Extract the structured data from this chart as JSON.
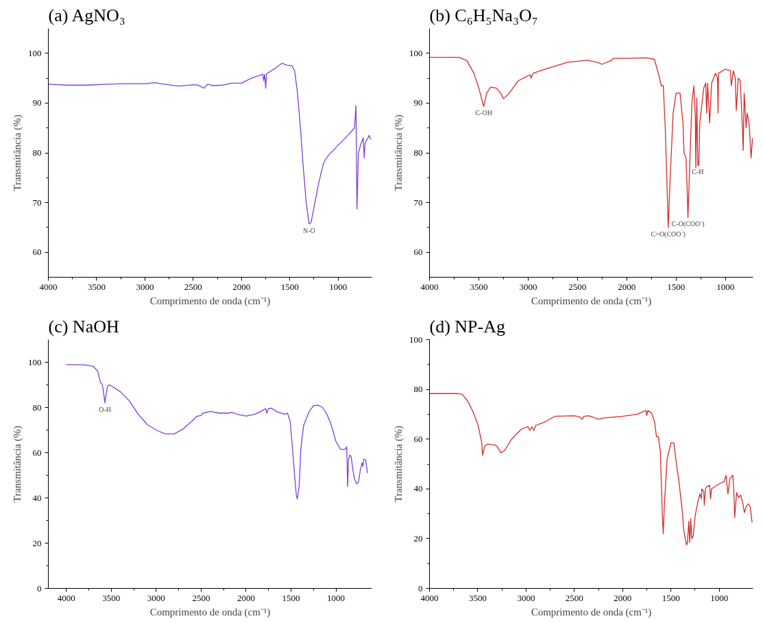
{
  "chart_data": [
    {
      "type": "line",
      "title": "(a) AgNO₃",
      "xlabel": "Comprimento de onda (cm⁻¹)",
      "ylabel": "Transmitância (%)",
      "xlim": [
        4000,
        650
      ],
      "ylim": [
        55,
        105
      ],
      "xticks": [
        4000,
        3500,
        3000,
        2500,
        2000,
        1500,
        1000
      ],
      "yticks": [
        60,
        70,
        80,
        90,
        100
      ],
      "grid": false,
      "line_style": "solid",
      "marker": "none",
      "series": [
        {
          "color": "#7f3fd8",
          "x": [
            4000,
            3800,
            3600,
            3400,
            3200,
            3000,
            2900,
            2800,
            2650,
            2500,
            2450,
            2390,
            2350,
            2300,
            2200,
            2100,
            2000,
            1900,
            1780,
            1770,
            1760,
            1750,
            1740,
            1650,
            1580,
            1530,
            1480,
            1450,
            1420,
            1390,
            1360,
            1330,
            1300,
            1280,
            1250,
            1200,
            1150,
            1100,
            1050,
            1000,
            950,
            900,
            830,
            815,
            810,
            805,
            800,
            790,
            760,
            740,
            730,
            720,
            690,
            680,
            660
          ],
          "values": [
            93.8,
            93.6,
            93.6,
            93.8,
            93.9,
            93.9,
            94.1,
            93.8,
            93.4,
            93.7,
            93.6,
            93.0,
            93.8,
            93.5,
            93.6,
            94.0,
            94.0,
            95.0,
            95.8,
            94.5,
            95.8,
            93.0,
            95.9,
            97.0,
            98.0,
            97.6,
            97.5,
            96.5,
            92,
            85,
            77,
            70,
            65.7,
            66,
            69,
            74,
            78,
            79.5,
            80.5,
            81.5,
            82.5,
            83.5,
            85,
            89.5,
            80,
            68.7,
            72,
            80,
            82,
            83,
            79,
            82,
            83,
            83.5,
            82.7
          ]
        }
      ],
      "annotations": [
        {
          "text": "N-O",
          "x": 1300,
          "y": 65.7
        }
      ]
    },
    {
      "type": "line",
      "title": "(b) C₆H₅Na₃O₇",
      "xlabel": "Comprimento de onda (cm⁻¹)",
      "ylabel": "Transmitância (%)",
      "xlim": [
        4000,
        720
      ],
      "ylim": [
        55,
        105
      ],
      "xticks": [
        4000,
        3500,
        3000,
        2500,
        2000,
        1500,
        1000
      ],
      "yticks": [
        60,
        70,
        80,
        90,
        100
      ],
      "grid": false,
      "line_style": "solid",
      "marker": "none",
      "series": [
        {
          "color": "#d42a2a",
          "x": [
            4000,
            3700,
            3620,
            3550,
            3500,
            3450,
            3420,
            3380,
            3320,
            3280,
            3250,
            3200,
            3100,
            2980,
            2970,
            2950,
            2800,
            2600,
            2400,
            2300,
            2250,
            2150,
            2140,
            2000,
            1800,
            1720,
            1680,
            1650,
            1630,
            1610,
            1590,
            1580,
            1560,
            1530,
            1500,
            1460,
            1430,
            1420,
            1410,
            1400,
            1390,
            1380,
            1370,
            1340,
            1320,
            1305,
            1300,
            1290,
            1280,
            1270,
            1260,
            1220,
            1200,
            1190,
            1180,
            1160,
            1140,
            1100,
            1080,
            1075,
            1070,
            1000,
            950,
            940,
            920,
            900,
            890,
            870,
            850,
            830,
            820,
            810,
            790,
            780,
            760,
            740,
            725
          ],
          "values": [
            99.2,
            99.2,
            98.5,
            96,
            93,
            89.3,
            92,
            93.2,
            93.0,
            92,
            90.9,
            91.8,
            94.5,
            95.7,
            95.0,
            96.0,
            97.0,
            98.2,
            98.6,
            98.2,
            97.8,
            98.6,
            99.0,
            99.0,
            99.1,
            98.8,
            96,
            93.5,
            93.5,
            85,
            72,
            65,
            75,
            88,
            92,
            92,
            86,
            80,
            79.5,
            79,
            74,
            67,
            73,
            90,
            93.5,
            87,
            77,
            91,
            77.5,
            77.5,
            86,
            93,
            94,
            88,
            94,
            86,
            94,
            96,
            95,
            88,
            96,
            96.8,
            96.5,
            93.5,
            96.5,
            95,
            88.5,
            95,
            94.5,
            86,
            80.5,
            92,
            85,
            88,
            86,
            79,
            83
          ]
        }
      ],
      "annotations": [
        {
          "text": "C-OH",
          "x": 3450,
          "y": 89.3
        },
        {
          "text": "C=O(COO⁻)",
          "x": 1580,
          "y": 65
        },
        {
          "text": "C-O(COO⁻)",
          "x": 1380,
          "y": 67
        },
        {
          "text": "C-H",
          "x": 1280,
          "y": 77.5
        }
      ]
    },
    {
      "type": "line",
      "title": "(c) NaOH",
      "xlabel": "Comprimento de onda (cm⁻¹)",
      "ylabel": "Transmitância (%)",
      "xlim": [
        4200,
        600
      ],
      "ylim": [
        0,
        110
      ],
      "xticks": [
        4000,
        3500,
        3000,
        2500,
        2000,
        1500,
        1000
      ],
      "yticks": [
        0,
        20,
        40,
        60,
        80,
        100
      ],
      "grid": false,
      "line_style": "solid",
      "marker": "none",
      "series": [
        {
          "color": "#7f3fd8",
          "x": [
            4000,
            3800,
            3700,
            3650,
            3620,
            3600,
            3590,
            3570,
            3560,
            3540,
            3520,
            3400,
            3300,
            3200,
            3100,
            3000,
            2900,
            2800,
            2700,
            2600,
            2550,
            2500,
            2480,
            2400,
            2300,
            2200,
            2150,
            2100,
            2000,
            1900,
            1800,
            1780,
            1770,
            1750,
            1720,
            1650,
            1570,
            1540,
            1510,
            1490,
            1460,
            1440,
            1430,
            1410,
            1390,
            1360,
            1300,
            1250,
            1200,
            1150,
            1100,
            1050,
            1000,
            950,
            900,
            880,
            870,
            860,
            845,
            830,
            810,
            790,
            770,
            750,
            730,
            710,
            700,
            690,
            670,
            650
          ],
          "values": [
            99,
            98.8,
            98.2,
            96,
            91,
            90.3,
            88,
            82,
            85,
            89.5,
            90,
            87,
            83,
            77,
            72.5,
            70,
            68.3,
            68.3,
            70.5,
            74,
            76,
            76.5,
            77.5,
            78.2,
            77.5,
            77.5,
            77.8,
            77,
            76.2,
            77,
            79,
            79.5,
            77.5,
            79.5,
            79.7,
            78,
            77,
            77.5,
            74,
            65,
            50,
            41,
            39.5,
            45,
            62,
            72,
            78,
            80.8,
            81,
            80,
            77,
            72,
            65,
            61.5,
            61.5,
            62.5,
            45,
            57,
            59,
            58,
            52,
            48,
            46.2,
            47,
            52,
            55.5,
            54,
            57,
            57,
            51
          ]
        }
      ],
      "annotations": [
        {
          "text": "O-H",
          "x": 3570,
          "y": 82
        }
      ]
    },
    {
      "type": "line",
      "title": "(d) NP-Ag",
      "xlabel": "Comprimento de onda (cm⁻¹)",
      "ylabel": "Transmitância (%)",
      "xlim": [
        4000,
        650
      ],
      "ylim": [
        0,
        100
      ],
      "xticks": [
        4000,
        3500,
        3000,
        2500,
        2000,
        1500,
        1000
      ],
      "yticks": [
        0,
        20,
        40,
        60,
        80,
        100
      ],
      "grid": false,
      "line_style": "solid",
      "marker": "none",
      "series": [
        {
          "color": "#d42a2a",
          "x": [
            4000,
            3700,
            3660,
            3600,
            3550,
            3500,
            3460,
            3450,
            3430,
            3400,
            3320,
            3300,
            3260,
            3220,
            3150,
            3050,
            2980,
            2960,
            2940,
            2920,
            2900,
            2800,
            2700,
            2500,
            2450,
            2420,
            2400,
            2350,
            2250,
            2200,
            2000,
            1850,
            1760,
            1750,
            1740,
            1700,
            1670,
            1650,
            1630,
            1610,
            1590,
            1580,
            1570,
            1540,
            1500,
            1470,
            1440,
            1420,
            1400,
            1380,
            1370,
            1340,
            1330,
            1315,
            1305,
            1295,
            1285,
            1270,
            1250,
            1220,
            1200,
            1185,
            1180,
            1160,
            1155,
            1140,
            1100,
            1090,
            1080,
            1000,
            950,
            930,
            910,
            890,
            860,
            850,
            840,
            820,
            800,
            780,
            760,
            740,
            720,
            700,
            680,
            660
          ],
          "values": [
            78.3,
            78.3,
            78,
            75,
            71,
            66,
            59,
            53.5,
            57,
            58,
            57.6,
            57,
            54.5,
            55.5,
            60,
            64,
            65,
            63.5,
            65,
            63.5,
            65.5,
            67,
            69.2,
            69.4,
            69,
            68,
            69.2,
            69.4,
            68,
            68.5,
            69.2,
            70,
            71.5,
            69.5,
            71.5,
            70.5,
            67,
            61,
            61,
            55,
            30,
            22,
            32,
            52,
            58.5,
            58.5,
            49,
            44,
            37,
            30,
            24,
            17.5,
            18,
            27,
            18.5,
            28,
            20,
            21,
            29,
            35,
            38,
            36,
            40,
            39,
            33.5,
            40.5,
            41.5,
            36,
            40,
            42,
            43,
            45.5,
            38,
            44,
            45.5,
            40,
            28.5,
            38.5,
            36.5,
            37.5,
            35,
            30.5,
            33,
            34,
            33,
            26.5
          ]
        }
      ]
    }
  ]
}
